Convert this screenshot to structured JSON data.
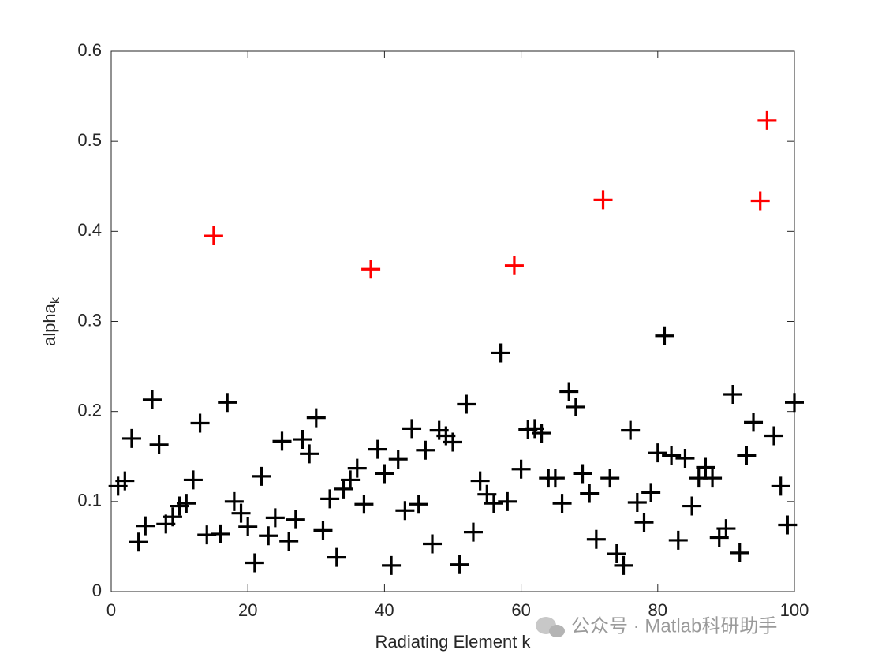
{
  "chart_data": {
    "type": "scatter",
    "xlabel": "Radiating Element k",
    "ylabel": "alpha",
    "ylabel_subscript": "k",
    "watermark": "公众号 · Matlab科研助手",
    "xlim": [
      0,
      100
    ],
    "xticks": [
      0,
      20,
      40,
      60,
      80,
      100
    ],
    "ylim": [
      0,
      0.6
    ],
    "yticks": [
      0,
      0.1,
      0.2,
      0.3,
      0.4,
      0.5,
      0.6
    ],
    "grid": false,
    "marker": "plus",
    "series": [
      {
        "color": "#000000",
        "x": [
          1,
          2,
          3,
          4,
          5,
          6,
          7,
          8,
          9,
          10,
          11,
          12,
          13,
          14,
          16,
          17,
          18,
          19,
          20,
          21,
          22,
          23,
          24,
          25,
          26,
          27,
          28,
          29,
          30,
          31,
          32,
          33,
          34,
          35,
          36,
          37,
          39,
          40,
          41,
          42,
          43,
          44,
          45,
          46,
          47,
          48,
          49,
          50,
          51,
          52,
          53,
          54,
          55,
          56,
          57,
          58,
          60,
          61,
          62,
          63,
          64,
          65,
          66,
          67,
          68,
          69,
          70,
          71,
          73,
          74,
          75,
          76,
          77,
          78,
          79,
          80,
          81,
          82,
          83,
          84,
          85,
          86,
          87,
          88,
          89,
          90,
          91,
          92,
          93,
          94,
          97,
          98,
          99,
          100
        ],
        "values": [
          0.117,
          0.123,
          0.17,
          0.055,
          0.073,
          0.213,
          0.163,
          0.075,
          0.083,
          0.095,
          0.098,
          0.124,
          0.187,
          0.063,
          0.064,
          0.21,
          0.1,
          0.087,
          0.072,
          0.032,
          0.128,
          0.062,
          0.082,
          0.167,
          0.056,
          0.08,
          0.169,
          0.153,
          0.193,
          0.068,
          0.103,
          0.038,
          0.114,
          0.124,
          0.137,
          0.097,
          0.158,
          0.131,
          0.029,
          0.147,
          0.09,
          0.181,
          0.097,
          0.157,
          0.053,
          0.179,
          0.173,
          0.166,
          0.03,
          0.208,
          0.066,
          0.123,
          0.108,
          0.098,
          0.265,
          0.1,
          0.136,
          0.18,
          0.181,
          0.176,
          0.126,
          0.126,
          0.098,
          0.222,
          0.205,
          0.131,
          0.109,
          0.058,
          0.126,
          0.042,
          0.029,
          0.179,
          0.099,
          0.077,
          0.11,
          0.154,
          0.284,
          0.151,
          0.057,
          0.148,
          0.095,
          0.126,
          0.138,
          0.126,
          0.06,
          0.07,
          0.219,
          0.043,
          0.151,
          0.188,
          0.173,
          0.117,
          0.074,
          0.21
        ]
      },
      {
        "color": "#ff0000",
        "x": [
          15,
          38,
          59,
          72,
          95,
          96
        ],
        "values": [
          0.395,
          0.358,
          0.362,
          0.435,
          0.434,
          0.523
        ]
      }
    ]
  }
}
